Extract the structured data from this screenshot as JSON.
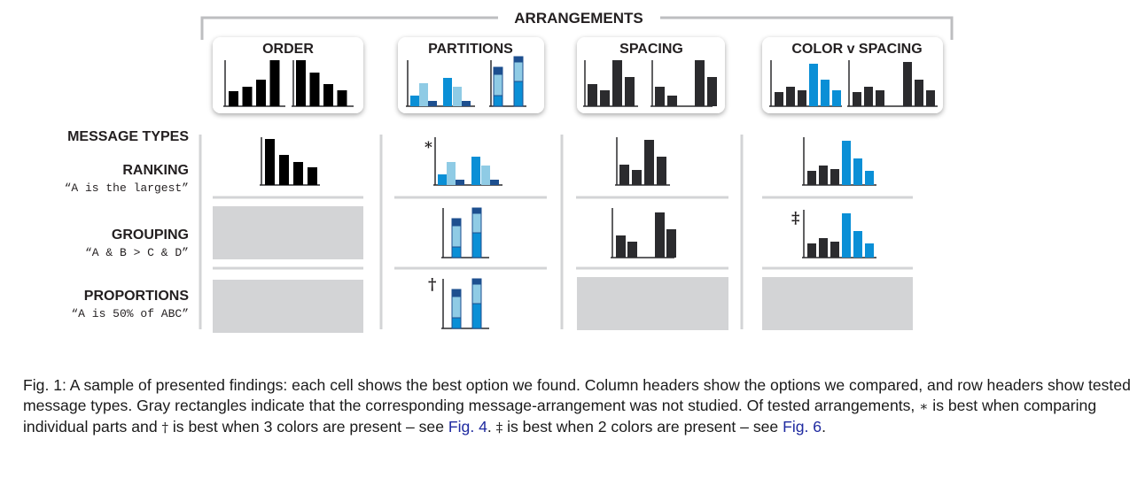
{
  "header": {
    "title": "ARRANGEMENTS"
  },
  "columns": [
    {
      "id": "order",
      "label": "ORDER"
    },
    {
      "id": "partitions",
      "label": "PARTITIONS"
    },
    {
      "id": "spacing",
      "label": "SPACING"
    },
    {
      "id": "color",
      "label": "COLOR v SPACING"
    }
  ],
  "rows_header": "MESSAGE TYPES",
  "rows": [
    {
      "id": "ranking",
      "label": "RANKING",
      "example": "“A is the largest”"
    },
    {
      "id": "grouping",
      "label": "GROUPING",
      "example": "“A & B > C & D”"
    },
    {
      "id": "proportions",
      "label": "PROPORTIONS",
      "example": "“A is 50% of ABC”"
    }
  ],
  "markers": {
    "asterisk": "*",
    "dagger": "†",
    "double_dagger": "‡"
  },
  "colors": {
    "dark": "#2b2b2e",
    "light_blue": "#8fcbe5",
    "mid_blue": "#0a8fd6",
    "navy": "#1d4f8f",
    "gray_cell": "#d3d4d6",
    "rule": "#cfd0d2"
  },
  "caption": {
    "part1": "Fig. 1: A sample of presented findings: each cell shows the best option we found. Column headers show the options we compared, and row headers show tested message types. Gray rectangles indicate that the corresponding message-arrangement was not studied. Of tested arrangements, ",
    "sym_ast": "∗",
    "part2": " is best when comparing individual parts and ",
    "sym_dag": "†",
    "part3": " is best when 3 colors are present – see ",
    "link1": "Fig. 4",
    "part4": ". ",
    "sym_ddag": "‡",
    "part5": " is best when 2 colors are present – see ",
    "link2": "Fig. 6",
    "part6": "."
  }
}
